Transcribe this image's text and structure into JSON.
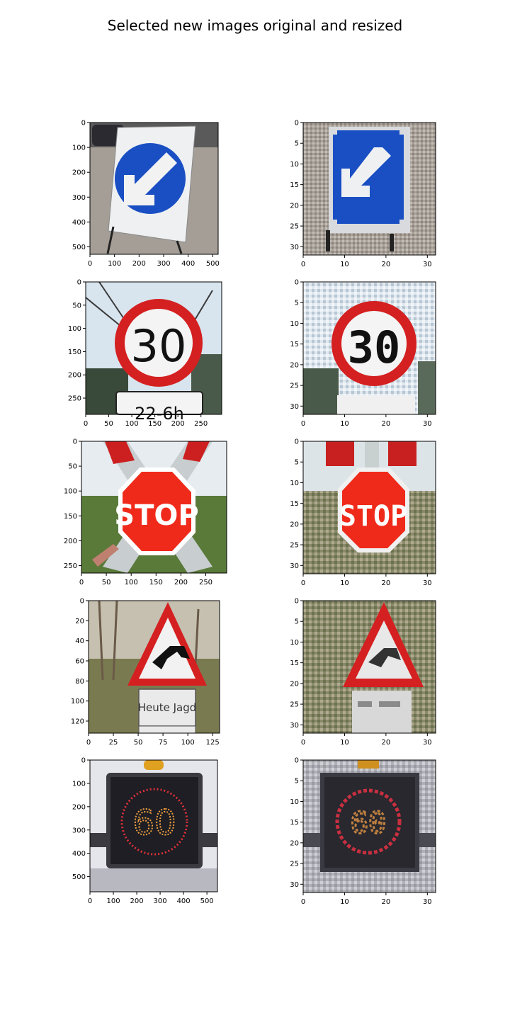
{
  "figure": {
    "title": "Selected new images original and resized"
  },
  "chart_data": [
    {
      "type": "image",
      "panel": "original",
      "sign": "keep-left-blue-arrow",
      "xlim": [
        0,
        522
      ],
      "ylim": [
        530,
        0
      ],
      "xticks": [
        0,
        100,
        200,
        300,
        400,
        500
      ],
      "yticks": [
        0,
        100,
        200,
        300,
        400,
        500
      ]
    },
    {
      "type": "image",
      "panel": "resized",
      "sign": "keep-left-blue-arrow",
      "xlim": [
        0,
        32
      ],
      "ylim": [
        32,
        0
      ],
      "xticks": [
        0,
        10,
        20,
        30
      ],
      "yticks": [
        0,
        5,
        10,
        15,
        20,
        25,
        30
      ]
    },
    {
      "type": "image",
      "panel": "original",
      "sign": "speed-limit-30",
      "sign_text": "30",
      "plate_text": "22-6h",
      "xlim": [
        0,
        295
      ],
      "ylim": [
        285,
        0
      ],
      "xticks": [
        0,
        50,
        100,
        150,
        200,
        250
      ],
      "yticks": [
        0,
        50,
        100,
        150,
        200,
        250
      ]
    },
    {
      "type": "image",
      "panel": "resized",
      "sign": "speed-limit-30",
      "sign_text": "30",
      "xlim": [
        0,
        32
      ],
      "ylim": [
        32,
        0
      ],
      "xticks": [
        0,
        10,
        20,
        30
      ],
      "yticks": [
        0,
        5,
        10,
        15,
        20,
        25,
        30
      ]
    },
    {
      "type": "image",
      "panel": "original",
      "sign": "stop",
      "sign_text": "STOP",
      "xlim": [
        0,
        292
      ],
      "ylim": [
        265,
        0
      ],
      "xticks": [
        0,
        50,
        100,
        150,
        200,
        250
      ],
      "yticks": [
        0,
        50,
        100,
        150,
        200,
        250
      ]
    },
    {
      "type": "image",
      "panel": "resized",
      "sign": "stop",
      "sign_text": "STOP",
      "xlim": [
        0,
        32
      ],
      "ylim": [
        32,
        0
      ],
      "xticks": [
        0,
        10,
        20,
        30
      ],
      "yticks": [
        0,
        5,
        10,
        15,
        20,
        25,
        30
      ]
    },
    {
      "type": "image",
      "panel": "original",
      "sign": "wild-animals-triangle",
      "plate_text": "Heute Jagd",
      "xlim": [
        0,
        132
      ],
      "ylim": [
        132,
        0
      ],
      "xticks": [
        0,
        25,
        50,
        75,
        100,
        125
      ],
      "yticks": [
        0,
        20,
        40,
        60,
        80,
        100,
        120
      ]
    },
    {
      "type": "image",
      "panel": "resized",
      "sign": "wild-animals-triangle",
      "xlim": [
        0,
        32
      ],
      "ylim": [
        32,
        0
      ],
      "xticks": [
        0,
        10,
        20,
        30
      ],
      "yticks": [
        0,
        5,
        10,
        15,
        20,
        25,
        30
      ]
    },
    {
      "type": "image",
      "panel": "original",
      "sign": "led-speed-limit-60",
      "sign_text": "60",
      "xlim": [
        0,
        545
      ],
      "ylim": [
        565,
        0
      ],
      "xticks": [
        0,
        100,
        200,
        300,
        400,
        500
      ],
      "yticks": [
        0,
        100,
        200,
        300,
        400,
        500
      ]
    },
    {
      "type": "image",
      "panel": "resized",
      "sign": "led-speed-limit-60",
      "sign_text": "60",
      "xlim": [
        0,
        32
      ],
      "ylim": [
        32,
        0
      ],
      "xticks": [
        0,
        10,
        20,
        30
      ],
      "yticks": [
        0,
        5,
        10,
        15,
        20,
        25,
        30
      ]
    }
  ],
  "colors": {
    "blue_sign": "#1a4fc4",
    "red_sign": "#d42020",
    "stop_red": "#f02a1a",
    "led_red": "#e0303a",
    "led_amber": "#f0a040",
    "gravel": "#9a918a",
    "sky": "#d8e4ee",
    "foliage": "#6a7a4a",
    "dark_panel": "#2a2a30"
  }
}
